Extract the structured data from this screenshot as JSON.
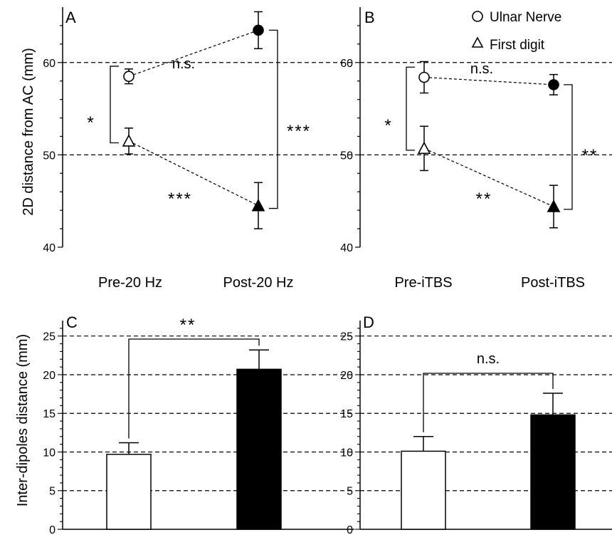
{
  "panels_top": [
    {
      "letter": "A",
      "ylabel": "2D distance from AC (mm)",
      "ylim": [
        40,
        66
      ],
      "yticks": [
        "40",
        "50",
        "60"
      ],
      "gridlines": [
        50,
        60
      ],
      "conditions": [
        "Pre-20 Hz",
        "Post-20 Hz"
      ],
      "series": [
        {
          "name": "Ulnar Nerve",
          "marker": "circle",
          "values": [
            58.5,
            63.5
          ],
          "errors": [
            0.8,
            2.0
          ]
        },
        {
          "name": "First digit",
          "marker": "triangle",
          "values": [
            51.5,
            44.5
          ],
          "errors": [
            1.4,
            2.5
          ]
        }
      ],
      "sig": {
        "within_pre": "*",
        "within_post": "***",
        "ulnar_change": "n.s.",
        "digit_change": "***"
      }
    },
    {
      "letter": "B",
      "ylabel": "",
      "ylim": [
        40,
        66
      ],
      "yticks": [
        "40",
        "50",
        "60"
      ],
      "gridlines": [
        50,
        60
      ],
      "conditions": [
        "Pre-iTBS",
        "Post-iTBS"
      ],
      "series": [
        {
          "name": "Ulnar Nerve",
          "marker": "circle",
          "values": [
            58.4,
            57.6
          ],
          "errors": [
            1.7,
            1.1
          ]
        },
        {
          "name": "First digit",
          "marker": "triangle",
          "values": [
            50.7,
            44.4
          ],
          "errors": [
            2.4,
            2.3
          ]
        }
      ],
      "sig": {
        "within_pre": "*",
        "within_post": "**",
        "ulnar_change": "n.s.",
        "digit_change": "**"
      }
    }
  ],
  "legend": {
    "ulnar_label": "Ulnar Nerve",
    "digit_label": "First digit"
  },
  "panels_bottom": [
    {
      "letter": "C",
      "ylabel": "Inter-dipoles distance (mm)",
      "ylim": [
        0,
        27
      ],
      "yticks": [
        "0",
        "5",
        "10",
        "15",
        "20",
        "25"
      ],
      "gridlines": [
        5,
        10,
        15,
        20,
        25
      ],
      "values": [
        9.7,
        20.7
      ],
      "errors": [
        1.5,
        2.5
      ],
      "sig": "**"
    },
    {
      "letter": "D",
      "ylabel": "",
      "ylim": [
        0,
        27
      ],
      "yticks": [
        "0",
        "5",
        "10",
        "15",
        "20",
        "25"
      ],
      "gridlines": [
        5,
        10,
        15,
        20,
        25
      ],
      "values": [
        10.1,
        14.8
      ],
      "errors": [
        1.9,
        2.8
      ],
      "sig": "n.s."
    }
  ],
  "chart_data": [
    {
      "type": "line",
      "panel": "A",
      "ylabel": "2D distance from AC (mm)",
      "ylim": [
        40,
        66
      ],
      "categories": [
        "Pre-20 Hz",
        "Post-20 Hz"
      ],
      "series": [
        {
          "name": "Ulnar Nerve",
          "values": [
            58.5,
            63.5
          ]
        },
        {
          "name": "First digit",
          "values": [
            51.5,
            44.5
          ]
        }
      ]
    },
    {
      "type": "line",
      "panel": "B",
      "ylim": [
        40,
        66
      ],
      "categories": [
        "Pre-iTBS",
        "Post-iTBS"
      ],
      "series": [
        {
          "name": "Ulnar Nerve",
          "values": [
            58.4,
            57.6
          ]
        },
        {
          "name": "First digit",
          "values": [
            50.7,
            44.4
          ]
        }
      ]
    },
    {
      "type": "bar",
      "panel": "C",
      "ylabel": "Inter-dipoles distance (mm)",
      "ylim": [
        0,
        27
      ],
      "categories": [
        "Pre-20 Hz",
        "Post-20 Hz"
      ],
      "values": [
        9.7,
        20.7
      ]
    },
    {
      "type": "bar",
      "panel": "D",
      "ylim": [
        0,
        27
      ],
      "categories": [
        "Pre-iTBS",
        "Post-iTBS"
      ],
      "values": [
        10.1,
        14.8
      ]
    }
  ]
}
